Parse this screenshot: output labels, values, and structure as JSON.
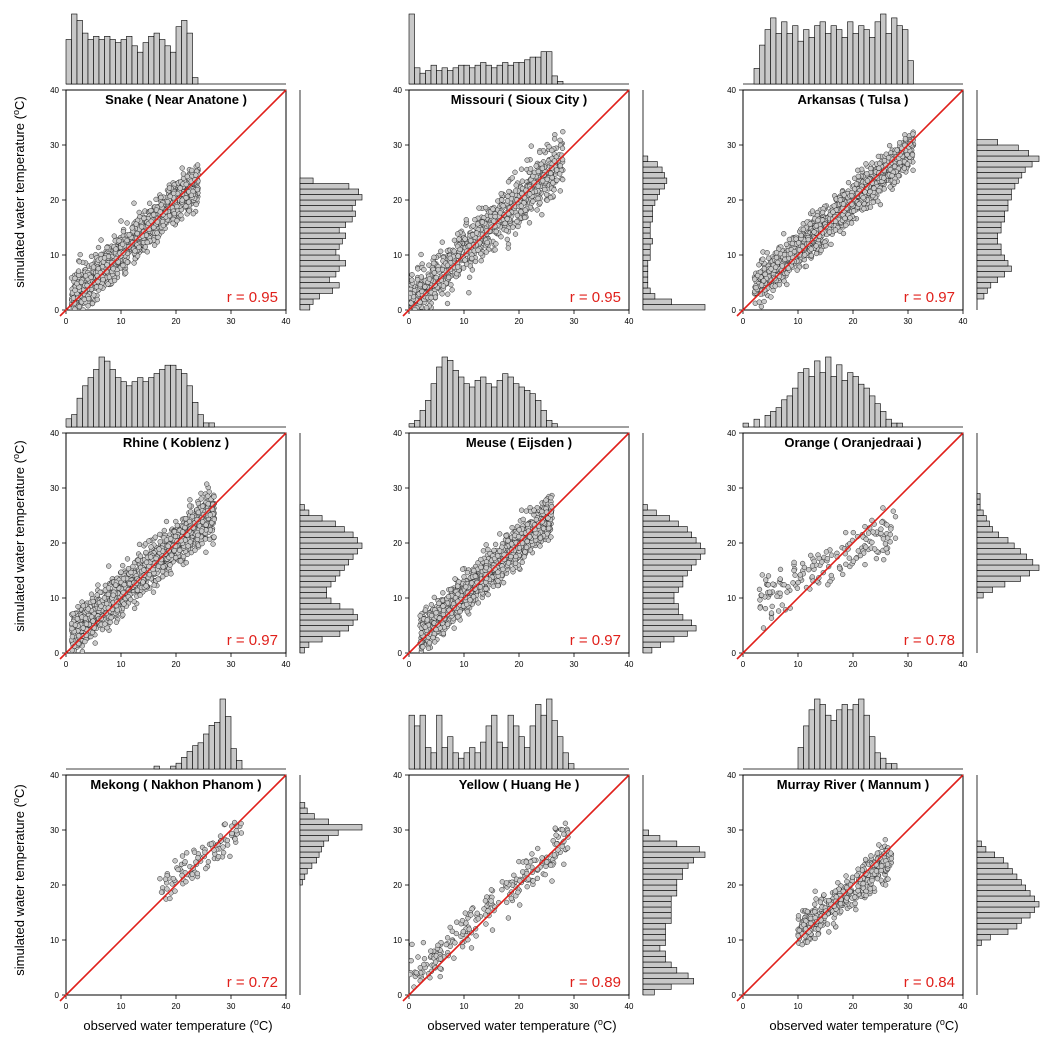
{
  "figure": {
    "xlabel_prefix": "observed water temperature (",
    "ylabel_prefix": "simulated water temperature (",
    "unit_sup": "o",
    "unit_suffix": "C)",
    "line_color": "#e0201b",
    "point_fill": "#c8c8c8",
    "hist_fill": "#c8c8c8",
    "r_color": "#e0201b"
  },
  "chart_data": [
    {
      "type": "scatter",
      "title": "Snake ( Near Anatone )",
      "r_label": "r = 0.95",
      "xlim": [
        0,
        40
      ],
      "ylim": [
        0,
        40
      ],
      "xticks": [
        0,
        10,
        20,
        30,
        40
      ],
      "yticks": [
        0,
        10,
        20,
        30,
        40
      ],
      "reference_line": "1:1",
      "point_cloud": {
        "x_range": [
          1,
          24
        ],
        "slope": 0.92,
        "intercept": 1.3,
        "spread": 1.8,
        "n": 1400,
        "seed": 11
      },
      "x_histogram": {
        "range": [
          0,
          24
        ],
        "counts": [
          14,
          22,
          20,
          16,
          14,
          15,
          14,
          15,
          14,
          13,
          14,
          15,
          12,
          10,
          13,
          15,
          16,
          14,
          12,
          10,
          18,
          20,
          16,
          2
        ]
      },
      "y_histogram": {
        "range": [
          0,
          24
        ],
        "counts": [
          3,
          4,
          6,
          10,
          12,
          9,
          11,
          12,
          14,
          12,
          11,
          12,
          13,
          14,
          12,
          14,
          16,
          17,
          16,
          17,
          19,
          18,
          15,
          4
        ]
      }
    },
    {
      "type": "scatter",
      "title": "Missouri ( Sioux City )",
      "r_label": "r = 0.95",
      "xlim": [
        0,
        40
      ],
      "ylim": [
        0,
        40
      ],
      "xticks": [
        0,
        10,
        20,
        30,
        40
      ],
      "yticks": [
        0,
        10,
        20,
        30,
        40
      ],
      "reference_line": "1:1",
      "point_cloud": {
        "x_range": [
          0,
          28
        ],
        "slope": 0.92,
        "intercept": 1.5,
        "spread": 2.3,
        "n": 900,
        "seed": 23
      },
      "x_histogram": {
        "range": [
          0,
          28
        ],
        "counts": [
          26,
          6,
          4,
          5,
          7,
          5,
          6,
          5,
          6,
          7,
          7,
          6,
          7,
          8,
          7,
          6,
          7,
          8,
          7,
          8,
          8,
          9,
          10,
          10,
          12,
          12,
          3,
          1
        ]
      },
      "y_histogram": {
        "range": [
          0,
          28
        ],
        "counts": [
          26,
          12,
          5,
          3,
          2,
          2,
          2,
          2,
          2,
          3,
          3,
          3,
          4,
          3,
          3,
          3,
          4,
          4,
          4,
          5,
          6,
          7,
          9,
          10,
          9,
          8,
          6,
          2
        ]
      }
    },
    {
      "type": "scatter",
      "title": "Arkansas ( Tulsa )",
      "r_label": "r = 0.97",
      "xlim": [
        0,
        40
      ],
      "ylim": [
        0,
        40
      ],
      "xticks": [
        0,
        10,
        20,
        30,
        40
      ],
      "yticks": [
        0,
        10,
        20,
        30,
        40
      ],
      "reference_line": "1:1",
      "point_cloud": {
        "x_range": [
          2,
          31
        ],
        "slope": 0.88,
        "intercept": 2.2,
        "spread": 1.7,
        "n": 1300,
        "seed": 37
      },
      "x_histogram": {
        "range": [
          2,
          31
        ],
        "counts": [
          4,
          10,
          14,
          17,
          13,
          16,
          13,
          15,
          11,
          14,
          12,
          15,
          16,
          13,
          15,
          14,
          12,
          16,
          13,
          15,
          14,
          12,
          16,
          18,
          13,
          17,
          15,
          14,
          6
        ]
      },
      "y_histogram": {
        "range": [
          2,
          31
        ],
        "counts": [
          2,
          3,
          4,
          6,
          8,
          10,
          9,
          8,
          7,
          7,
          6,
          6,
          7,
          7,
          8,
          8,
          9,
          9,
          10,
          10,
          11,
          12,
          13,
          14,
          16,
          18,
          15,
          12,
          6
        ]
      }
    },
    {
      "type": "scatter",
      "title": "Rhine ( Koblenz )",
      "r_label": "r = 0.97",
      "xlim": [
        0,
        40
      ],
      "ylim": [
        0,
        40
      ],
      "xticks": [
        0,
        10,
        20,
        30,
        40
      ],
      "yticks": [
        0,
        10,
        20,
        30,
        40
      ],
      "reference_line": "1:1",
      "point_cloud": {
        "x_range": [
          1,
          27
        ],
        "slope": 0.87,
        "intercept": 2.3,
        "spread": 1.9,
        "n": 1500,
        "seed": 41
      },
      "x_histogram": {
        "range": [
          0,
          27
        ],
        "counts": [
          2,
          3,
          7,
          10,
          12,
          14,
          17,
          16,
          14,
          12,
          11,
          10,
          11,
          12,
          11,
          12,
          13,
          14,
          15,
          15,
          14,
          13,
          10,
          6,
          3,
          1,
          1
        ]
      },
      "y_histogram": {
        "range": [
          0,
          27
        ],
        "counts": [
          1,
          2,
          5,
          9,
          11,
          12,
          13,
          12,
          9,
          7,
          6,
          6,
          7,
          8,
          9,
          10,
          11,
          12,
          13,
          14,
          13,
          12,
          10,
          8,
          5,
          2,
          1
        ]
      }
    },
    {
      "type": "scatter",
      "title": "Meuse ( Eijsden )",
      "r_label": "r = 0.97",
      "xlim": [
        0,
        40
      ],
      "ylim": [
        0,
        40
      ],
      "xticks": [
        0,
        10,
        20,
        30,
        40
      ],
      "yticks": [
        0,
        10,
        20,
        30,
        40
      ],
      "reference_line": "1:1",
      "point_cloud": {
        "x_range": [
          2,
          26
        ],
        "slope": 0.93,
        "intercept": 1.3,
        "spread": 1.7,
        "n": 1400,
        "seed": 53
      },
      "x_histogram": {
        "range": [
          0,
          27
        ],
        "counts": [
          1,
          2,
          5,
          8,
          13,
          18,
          21,
          20,
          17,
          15,
          13,
          12,
          14,
          15,
          13,
          12,
          14,
          16,
          15,
          13,
          12,
          11,
          10,
          8,
          5,
          2,
          1
        ]
      },
      "y_histogram": {
        "range": [
          0,
          27
        ],
        "counts": [
          2,
          4,
          7,
          10,
          12,
          11,
          9,
          8,
          8,
          7,
          7,
          8,
          9,
          9,
          10,
          11,
          12,
          13,
          14,
          13,
          12,
          11,
          10,
          8,
          6,
          3,
          1
        ]
      }
    },
    {
      "type": "scatter",
      "title": "Orange ( Oranjedraai )",
      "r_label": "r = 0.78",
      "xlim": [
        0,
        40
      ],
      "ylim": [
        0,
        40
      ],
      "xticks": [
        0,
        10,
        20,
        30,
        40
      ],
      "yticks": [
        0,
        10,
        20,
        30,
        40
      ],
      "reference_line": "1:1",
      "point_cloud": {
        "x_range": [
          3,
          28
        ],
        "slope": 0.5,
        "intercept": 8.5,
        "spread": 2.0,
        "n": 170,
        "seed": 67
      },
      "x_histogram": {
        "range": [
          0,
          30
        ],
        "counts": [
          1,
          0,
          2,
          0,
          3,
          4,
          5,
          7,
          8,
          10,
          14,
          15,
          13,
          17,
          14,
          18,
          13,
          16,
          12,
          14,
          13,
          11,
          10,
          8,
          6,
          4,
          2,
          1,
          1,
          0
        ]
      },
      "y_histogram": {
        "range": [
          10,
          29
        ],
        "counts": [
          2,
          5,
          9,
          14,
          17,
          20,
          18,
          16,
          14,
          12,
          10,
          7,
          5,
          4,
          3,
          2,
          1,
          1,
          1
        ]
      }
    },
    {
      "type": "scatter",
      "title": "Mekong ( Nakhon Phanom )",
      "r_label": "r = 0.72",
      "xlim": [
        0,
        40
      ],
      "ylim": [
        0,
        40
      ],
      "xticks": [
        0,
        10,
        20,
        30,
        40
      ],
      "yticks": [
        0,
        10,
        20,
        30,
        40
      ],
      "reference_line": "1:1",
      "point_cloud": {
        "x_range": [
          17,
          32
        ],
        "slope": 0.72,
        "intercept": 7.0,
        "spread": 1.5,
        "n": 95,
        "seed": 79
      },
      "x_histogram": {
        "range": [
          16,
          32
        ],
        "counts": [
          1,
          0,
          0,
          1,
          2,
          4,
          6,
          8,
          9,
          12,
          15,
          16,
          24,
          18,
          7,
          3
        ]
      },
      "y_histogram": {
        "range": [
          20,
          35
        ],
        "counts": [
          1,
          2,
          3,
          5,
          7,
          8,
          9,
          10,
          12,
          16,
          26,
          12,
          6,
          3,
          2
        ]
      }
    },
    {
      "type": "scatter",
      "title": "Yellow ( Huang He )",
      "r_label": "r = 0.89",
      "xlim": [
        0,
        40
      ],
      "ylim": [
        0,
        40
      ],
      "xticks": [
        0,
        10,
        20,
        30,
        40
      ],
      "yticks": [
        0,
        10,
        20,
        30,
        40
      ],
      "reference_line": "1:1",
      "point_cloud": {
        "x_range": [
          0,
          29
        ],
        "slope": 0.88,
        "intercept": 2.6,
        "spread": 2.0,
        "n": 240,
        "seed": 97
      },
      "x_histogram": {
        "range": [
          0,
          30
        ],
        "counts": [
          10,
          8,
          10,
          4,
          3,
          10,
          4,
          6,
          3,
          2,
          3,
          4,
          3,
          5,
          8,
          10,
          5,
          4,
          10,
          8,
          6,
          4,
          8,
          12,
          10,
          13,
          9,
          6,
          3,
          1
        ]
      },
      "y_histogram": {
        "range": [
          0,
          30
        ],
        "counts": [
          2,
          5,
          9,
          8,
          6,
          5,
          4,
          4,
          3,
          4,
          4,
          4,
          4,
          5,
          5,
          5,
          5,
          5,
          6,
          6,
          6,
          7,
          7,
          8,
          9,
          11,
          10,
          6,
          3,
          1
        ]
      }
    },
    {
      "type": "scatter",
      "title": "Murray River  ( Mannum )",
      "r_label": "r = 0.84",
      "xlim": [
        0,
        40
      ],
      "ylim": [
        0,
        40
      ],
      "xticks": [
        0,
        10,
        20,
        30,
        40
      ],
      "yticks": [
        0,
        10,
        20,
        30,
        40
      ],
      "reference_line": "1:1",
      "point_cloud": {
        "x_range": [
          10,
          27
        ],
        "slope": 0.8,
        "intercept": 3.2,
        "spread": 1.8,
        "n": 380,
        "seed": 113
      },
      "x_histogram": {
        "range": [
          10,
          28
        ],
        "counts": [
          4,
          8,
          11,
          13,
          12,
          10,
          9,
          11,
          12,
          11,
          12,
          13,
          10,
          6,
          3,
          2,
          1,
          1
        ]
      },
      "y_histogram": {
        "range": [
          9,
          28
        ],
        "counts": [
          1,
          3,
          7,
          9,
          10,
          12,
          13,
          14,
          13,
          12,
          11,
          10,
          9,
          8,
          7,
          6,
          4,
          2,
          1
        ]
      }
    }
  ]
}
